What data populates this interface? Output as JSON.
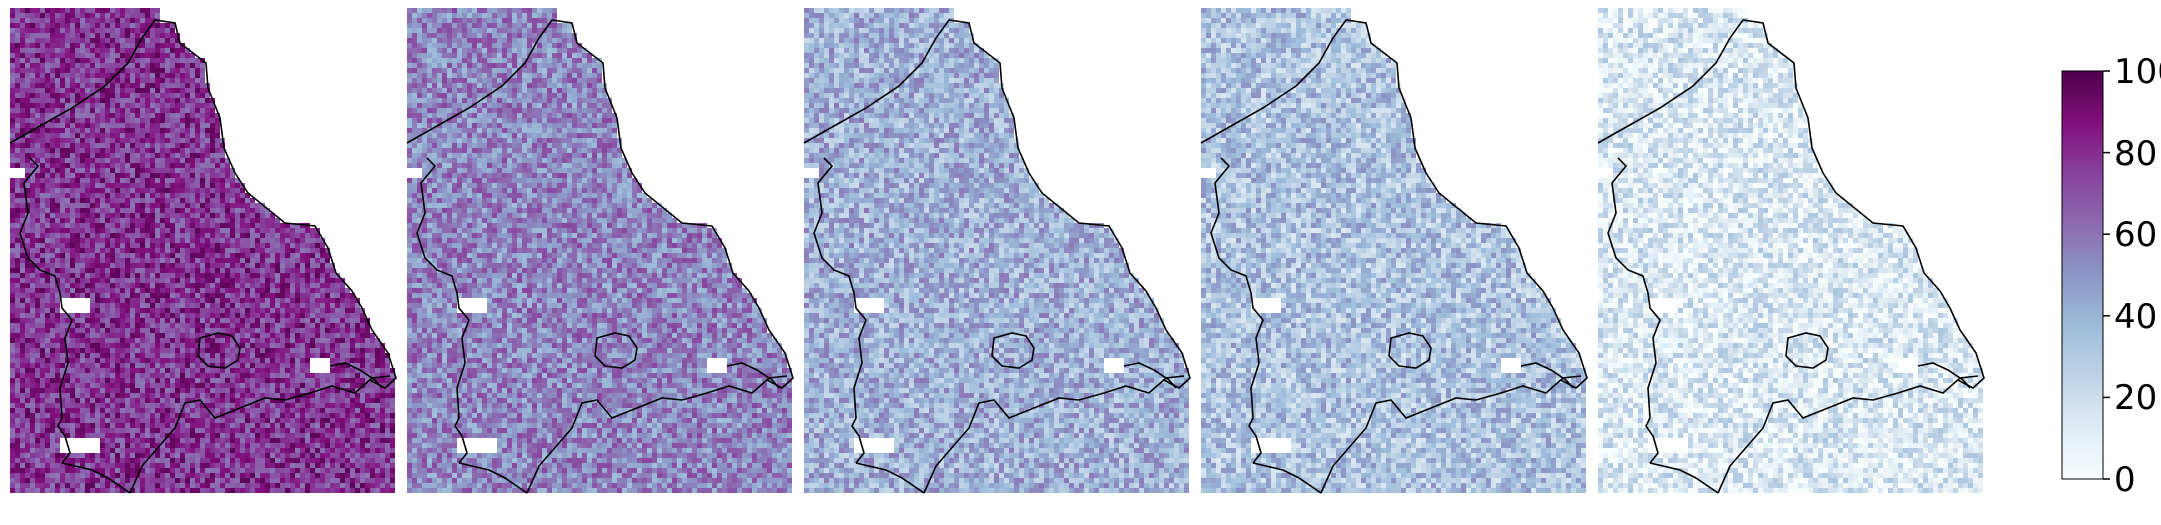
{
  "figure": {
    "panels": [
      {
        "id": "panel-1",
        "level": 0.78
      },
      {
        "id": "panel-2",
        "level": 0.55
      },
      {
        "id": "panel-3",
        "level": 0.4
      },
      {
        "id": "panel-4",
        "level": 0.33
      },
      {
        "id": "panel-5",
        "level": 0.14
      }
    ],
    "colorbar": {
      "colormap": "BuPu",
      "min": 0,
      "max": 100,
      "ticks": [
        "0",
        "20",
        "40",
        "60",
        "80",
        "100"
      ],
      "stops": [
        "#f7fcfd",
        "#e0ecf4",
        "#bfd3e6",
        "#9ebcda",
        "#8c96c6",
        "#8c6bb1",
        "#88419d",
        "#810f7c",
        "#4d004b"
      ]
    },
    "boundary_color": "#000000"
  }
}
